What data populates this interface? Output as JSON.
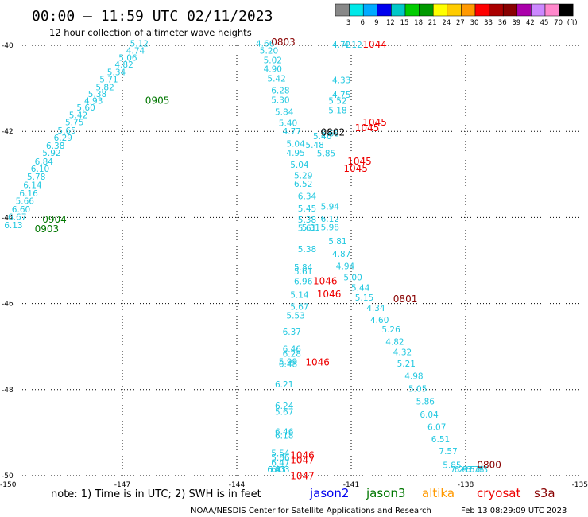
{
  "header": {
    "title": "00:00 – 11:59 UTC 02/11/2023",
    "subtitle": "12 hour collection of altimeter wave heights"
  },
  "colorbar": {
    "colors": [
      "#888888",
      "#00e8e8",
      "#00aaff",
      "#0000ee",
      "#00c8c8",
      "#00cc00",
      "#009900",
      "#ffff00",
      "#ffcc00",
      "#ff9900",
      "#ff0000",
      "#aa0000",
      "#880000",
      "#aa00aa",
      "#cc88ff",
      "#ff88cc",
      "#000000"
    ],
    "labels": [
      "3",
      "6",
      "9",
      "12",
      "15",
      "18",
      "21",
      "24",
      "27",
      "30",
      "33",
      "36",
      "39",
      "42",
      "45",
      "70",
      "(ft)"
    ]
  },
  "chart_data": {
    "type": "scatter",
    "title": "12 hour collection of altimeter wave heights",
    "xlim": [
      -150,
      -135
    ],
    "ylim": [
      -50,
      -40
    ],
    "x_ticks": [
      "-150",
      "-147",
      "-144",
      "-141",
      "-138",
      "-135"
    ],
    "y_ticks": [
      "-40",
      "-42",
      "-44",
      "-46",
      "-48",
      "-50"
    ],
    "grid": true,
    "swh_points": [
      {
        "lon": -146.8,
        "lat": -40.03,
        "swh": "5.12"
      },
      {
        "lon": -146.9,
        "lat": -40.19,
        "swh": "4.74"
      },
      {
        "lon": -147.1,
        "lat": -40.36,
        "swh": "5.06"
      },
      {
        "lon": -147.2,
        "lat": -40.52,
        "swh": "4.82"
      },
      {
        "lon": -147.4,
        "lat": -40.69,
        "swh": "5.34"
      },
      {
        "lon": -147.6,
        "lat": -40.86,
        "swh": "5.71"
      },
      {
        "lon": -147.7,
        "lat": -41.04,
        "swh": "5.82"
      },
      {
        "lon": -147.9,
        "lat": -41.2,
        "swh": "5.38"
      },
      {
        "lon": -148.0,
        "lat": -41.36,
        "swh": "4.93"
      },
      {
        "lon": -148.2,
        "lat": -41.52,
        "swh": "5.60"
      },
      {
        "lon": -148.4,
        "lat": -41.69,
        "swh": "5.42"
      },
      {
        "lon": -148.5,
        "lat": -41.86,
        "swh": "5.75"
      },
      {
        "lon": -148.7,
        "lat": -42.05,
        "swh": "5.65"
      },
      {
        "lon": -148.8,
        "lat": -42.22,
        "swh": "6.29"
      },
      {
        "lon": -149.0,
        "lat": -42.4,
        "swh": "6.38"
      },
      {
        "lon": -149.1,
        "lat": -42.57,
        "swh": "5.92"
      },
      {
        "lon": -149.3,
        "lat": -42.77,
        "swh": "6.84"
      },
      {
        "lon": -149.4,
        "lat": -42.94,
        "swh": "6.10"
      },
      {
        "lon": -149.5,
        "lat": -43.12,
        "swh": "5.78"
      },
      {
        "lon": -149.6,
        "lat": -43.32,
        "swh": "6.14"
      },
      {
        "lon": -149.7,
        "lat": -43.51,
        "swh": "6.16"
      },
      {
        "lon": -149.8,
        "lat": -43.69,
        "swh": "5.66"
      },
      {
        "lon": -149.9,
        "lat": -43.88,
        "swh": "6.60"
      },
      {
        "lon": -150.0,
        "lat": -44.06,
        "swh": "6.67"
      },
      {
        "lon": -150.1,
        "lat": -44.25,
        "swh": "6.13"
      },
      {
        "lon": -143.5,
        "lat": -40.03,
        "swh": "4.66"
      },
      {
        "lon": -143.4,
        "lat": -40.19,
        "swh": "5.20"
      },
      {
        "lon": -143.3,
        "lat": -40.42,
        "swh": "5.02"
      },
      {
        "lon": -143.3,
        "lat": -40.62,
        "swh": "4.90"
      },
      {
        "lon": -143.2,
        "lat": -40.84,
        "swh": "5.42"
      },
      {
        "lon": -143.1,
        "lat": -41.12,
        "swh": "6.28"
      },
      {
        "lon": -143.1,
        "lat": -41.34,
        "swh": "5.30"
      },
      {
        "lon": -143.0,
        "lat": -41.62,
        "swh": "5.84"
      },
      {
        "lon": -142.9,
        "lat": -41.88,
        "swh": "5.40"
      },
      {
        "lon": -142.8,
        "lat": -42.07,
        "swh": "4.77"
      },
      {
        "lon": -142.7,
        "lat": -42.36,
        "swh": "5.04"
      },
      {
        "lon": -142.7,
        "lat": -42.57,
        "swh": "4.95"
      },
      {
        "lon": -142.6,
        "lat": -42.85,
        "swh": "5.04"
      },
      {
        "lon": -142.5,
        "lat": -43.1,
        "swh": "5.29"
      },
      {
        "lon": -142.5,
        "lat": -43.29,
        "swh": "6.52"
      },
      {
        "lon": -142.4,
        "lat": -43.58,
        "swh": "6.34"
      },
      {
        "lon": -142.4,
        "lat": -43.86,
        "swh": "5.45"
      },
      {
        "lon": -142.4,
        "lat": -44.12,
        "swh": "5.38"
      },
      {
        "lon": -142.3,
        "lat": -44.31,
        "swh": "5.31"
      },
      {
        "lon": -142.4,
        "lat": -44.32,
        "swh": "5.61"
      },
      {
        "lon": -142.4,
        "lat": -44.81,
        "swh": "5.38"
      },
      {
        "lon": -142.5,
        "lat": -45.23,
        "swh": "5.84"
      },
      {
        "lon": -142.5,
        "lat": -45.32,
        "swh": "5.61"
      },
      {
        "lon": -142.5,
        "lat": -45.55,
        "swh": "6.96"
      },
      {
        "lon": -142.6,
        "lat": -45.87,
        "swh": "5.14"
      },
      {
        "lon": -142.6,
        "lat": -46.15,
        "swh": "5.67"
      },
      {
        "lon": -142.7,
        "lat": -46.35,
        "swh": "5.53"
      },
      {
        "lon": -142.8,
        "lat": -46.73,
        "swh": "6.37"
      },
      {
        "lon": -142.8,
        "lat": -47.13,
        "swh": "6.46"
      },
      {
        "lon": -142.8,
        "lat": -47.24,
        "swh": "6.28"
      },
      {
        "lon": -142.9,
        "lat": -47.42,
        "swh": "5.99"
      },
      {
        "lon": -142.9,
        "lat": -47.48,
        "swh": "6.48"
      },
      {
        "lon": -143.0,
        "lat": -47.95,
        "swh": "6.21"
      },
      {
        "lon": -143.0,
        "lat": -48.45,
        "swh": "6.24"
      },
      {
        "lon": -143.0,
        "lat": -48.59,
        "swh": "5.67"
      },
      {
        "lon": -143.0,
        "lat": -49.05,
        "swh": "6.46"
      },
      {
        "lon": -143.0,
        "lat": -49.14,
        "swh": "6.18"
      },
      {
        "lon": -143.1,
        "lat": -49.55,
        "swh": "5.54"
      },
      {
        "lon": -143.1,
        "lat": -49.65,
        "swh": "5.86"
      },
      {
        "lon": -143.1,
        "lat": -49.77,
        "swh": "6.47"
      },
      {
        "lon": -143.1,
        "lat": -50.08,
        "swh": "6.03"
      },
      {
        "lon": -143.2,
        "lat": -50.56,
        "swh": "6.83"
      },
      {
        "lon": -143.2,
        "lat": -50.68,
        "swh": "6.43"
      },
      {
        "lon": -143.2,
        "lat": -51.1,
        "swh": "6.93"
      },
      {
        "lon": -141.5,
        "lat": -40.06,
        "swh": "4.72"
      },
      {
        "lon": -141.2,
        "lat": -40.06,
        "swh": "4.12"
      },
      {
        "lon": -141.5,
        "lat": -40.88,
        "swh": "4.33"
      },
      {
        "lon": -141.5,
        "lat": -41.22,
        "swh": "4.75"
      },
      {
        "lon": -141.6,
        "lat": -41.36,
        "swh": "5.52"
      },
      {
        "lon": -141.6,
        "lat": -41.58,
        "swh": "5.18"
      },
      {
        "lon": -141.8,
        "lat": -42.12,
        "swh": "5.68"
      },
      {
        "lon": -142.0,
        "lat": -42.18,
        "swh": "5.46"
      },
      {
        "lon": -142.2,
        "lat": -42.38,
        "swh": "5.48"
      },
      {
        "lon": -141.9,
        "lat": -42.58,
        "swh": "5.85"
      },
      {
        "lon": -141.8,
        "lat": -43.82,
        "swh": "5.94"
      },
      {
        "lon": -141.8,
        "lat": -44.1,
        "swh": "6.12"
      },
      {
        "lon": -141.8,
        "lat": -44.3,
        "swh": "5.98"
      },
      {
        "lon": -141.6,
        "lat": -44.62,
        "swh": "5.81"
      },
      {
        "lon": -141.5,
        "lat": -44.92,
        "swh": "4.87"
      },
      {
        "lon": -141.4,
        "lat": -45.2,
        "swh": "4.94"
      },
      {
        "lon": -141.2,
        "lat": -45.46,
        "swh": "5.00"
      },
      {
        "lon": -141.0,
        "lat": -45.7,
        "swh": "5.44"
      },
      {
        "lon": -140.9,
        "lat": -45.93,
        "swh": "5.15"
      },
      {
        "lon": -140.6,
        "lat": -46.17,
        "swh": "4.34"
      },
      {
        "lon": -140.5,
        "lat": -46.45,
        "swh": "4.60"
      },
      {
        "lon": -140.2,
        "lat": -46.67,
        "swh": "5.26"
      },
      {
        "lon": -140.1,
        "lat": -46.96,
        "swh": "4.82"
      },
      {
        "lon": -139.9,
        "lat": -47.2,
        "swh": "4.32"
      },
      {
        "lon": -139.8,
        "lat": -47.47,
        "swh": "5.21"
      },
      {
        "lon": -139.6,
        "lat": -47.75,
        "swh": "4.98"
      },
      {
        "lon": -139.5,
        "lat": -48.05,
        "swh": "5.05"
      },
      {
        "lon": -139.3,
        "lat": -48.35,
        "swh": "5.86"
      },
      {
        "lon": -139.2,
        "lat": -48.65,
        "swh": "6.04"
      },
      {
        "lon": -139.0,
        "lat": -48.94,
        "swh": "6.07"
      },
      {
        "lon": -138.9,
        "lat": -49.22,
        "swh": "6.51"
      },
      {
        "lon": -138.7,
        "lat": -49.5,
        "swh": "7.57"
      },
      {
        "lon": -138.6,
        "lat": -49.82,
        "swh": "5.85"
      },
      {
        "lon": -138.4,
        "lat": -50.08,
        "swh": "7.21"
      },
      {
        "lon": -138.3,
        "lat": -50.36,
        "swh": "6.97"
      },
      {
        "lon": -138.1,
        "lat": -50.62,
        "swh": "6.57"
      },
      {
        "lon": -138.0,
        "lat": -50.92,
        "swh": "6.78"
      },
      {
        "lon": -137.9,
        "lat": -51.18,
        "swh": "6.83"
      }
    ],
    "time_labels": [
      {
        "lon": -143.1,
        "lat": -40.0,
        "text": "0803",
        "color": "#880000"
      },
      {
        "lon": -140.7,
        "lat": -40.06,
        "text": "1044",
        "color": "#ee0000"
      },
      {
        "lon": -146.4,
        "lat": -41.36,
        "text": "0905",
        "color": "#007700"
      },
      {
        "lon": -140.7,
        "lat": -41.87,
        "text": "1045",
        "color": "#ee0000"
      },
      {
        "lon": -140.9,
        "lat": -42.0,
        "text": "1045",
        "color": "#ee0000"
      },
      {
        "lon": -141.8,
        "lat": -42.1,
        "text": "0802",
        "color": "#000000"
      },
      {
        "lon": -141.1,
        "lat": -42.77,
        "text": "1045",
        "color": "#ee0000"
      },
      {
        "lon": -141.2,
        "lat": -42.94,
        "text": "1045",
        "color": "#ee0000"
      },
      {
        "lon": -149.1,
        "lat": -44.12,
        "text": "0904",
        "color": "#007700"
      },
      {
        "lon": -149.3,
        "lat": -44.34,
        "text": "0903",
        "color": "#007700"
      },
      {
        "lon": -142.0,
        "lat": -45.55,
        "text": "1046",
        "color": "#ee0000"
      },
      {
        "lon": -141.9,
        "lat": -45.86,
        "text": "1046",
        "color": "#ee0000"
      },
      {
        "lon": -139.9,
        "lat": -45.97,
        "text": "0801",
        "color": "#880000"
      },
      {
        "lon": -142.2,
        "lat": -47.44,
        "text": "1046",
        "color": "#ee0000"
      },
      {
        "lon": -142.6,
        "lat": -49.6,
        "text": "1046",
        "color": "#ee0000"
      },
      {
        "lon": -142.6,
        "lat": -49.71,
        "text": "1047",
        "color": "#ee0000"
      },
      {
        "lon": -142.6,
        "lat": -50.08,
        "text": "1047",
        "color": "#ee0000"
      },
      {
        "lon": -137.7,
        "lat": -49.82,
        "text": "0800",
        "color": "#880000"
      }
    ]
  },
  "footer": {
    "note": "note: 1) Time is in UTC; 2) SWH is in feet",
    "legend": [
      {
        "name": "jason2",
        "color": "#0000ee"
      },
      {
        "name": "jason3",
        "color": "#007700"
      },
      {
        "name": "altika",
        "color": "#ff9900"
      },
      {
        "name": "cryosat",
        "color": "#ee0000"
      },
      {
        "name": "s3a",
        "color": "#880000"
      }
    ],
    "credit": "NOAA/NESDIS Center for Satellite Applications and Research",
    "timestamp": "Feb 13 08:29:09 UTC 2023"
  }
}
